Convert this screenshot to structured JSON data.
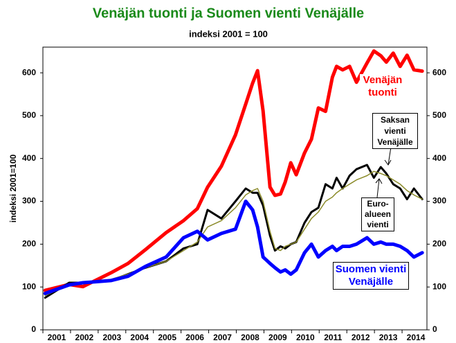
{
  "chart_data": {
    "type": "line",
    "title": "Venäjän tuonti ja Suomen vienti Venäjälle",
    "subtitle": "indeksi 2001 = 100",
    "y_label": "indeksi 2001=100",
    "x": [
      2000.58,
      2001.45,
      2001.95,
      2002.96,
      2003.58,
      2004.21,
      2004.96,
      2005.59,
      2006.09,
      2006.46,
      2006.96,
      2007.47,
      2007.84,
      2008.09,
      2008.27,
      2008.47,
      2008.72,
      2008.9,
      2009.1,
      2009.27,
      2009.47,
      2009.67,
      2009.97,
      2010.22,
      2010.47,
      2010.73,
      2010.98,
      2011.13,
      2011.35,
      2011.6,
      2011.85,
      2012.23,
      2012.48,
      2012.73,
      2012.93,
      2013.18,
      2013.43,
      2013.68,
      2013.93,
      2014.23
    ],
    "series": [
      {
        "name": "Venäjän tuonti",
        "color": "#ff0000",
        "values": [
          92,
          106,
          101,
          133,
          155,
          187,
          227,
          255,
          283,
          333,
          382,
          455,
          527,
          576,
          605,
          511,
          333,
          314,
          317,
          345,
          390,
          362,
          413,
          445,
          518,
          510,
          590,
          615,
          607,
          615,
          578,
          623,
          651,
          640,
          625,
          646,
          615,
          641,
          607,
          604
        ]
      },
      {
        "name": "Saksan vienti Venäjälle",
        "color": "#000000",
        "values": [
          75,
          110,
          110,
          115,
          130,
          145,
          160,
          190,
          200,
          280,
          260,
          300,
          330,
          320,
          320,
          290,
          220,
          185,
          195,
          190,
          200,
          205,
          250,
          275,
          285,
          340,
          330,
          355,
          330,
          360,
          375,
          385,
          355,
          380,
          365,
          340,
          330,
          305,
          330,
          305
        ]
      },
      {
        "name": "Euro-alueen vienti",
        "color": "#8b8b2a",
        "values": [
          80,
          105,
          108,
          118,
          130,
          145,
          160,
          185,
          205,
          240,
          255,
          285,
          315,
          325,
          330,
          300,
          230,
          190,
          185,
          195,
          200,
          205,
          235,
          260,
          275,
          300,
          310,
          320,
          330,
          340,
          350,
          360,
          370,
          365,
          360,
          350,
          340,
          325,
          315,
          305
        ]
      },
      {
        "name": "Suomen vienti Venäjälle",
        "color": "#0000ff",
        "values": [
          85,
          105,
          110,
          115,
          125,
          148,
          170,
          215,
          230,
          210,
          225,
          235,
          300,
          280,
          240,
          170,
          155,
          145,
          135,
          140,
          130,
          140,
          180,
          200,
          170,
          185,
          195,
          185,
          195,
          195,
          200,
          215,
          200,
          205,
          200,
          200,
          195,
          185,
          170,
          180
        ]
      }
    ],
    "xlim": [
      2000.5,
      2014.4
    ],
    "xticks": [
      2001,
      2002,
      2003,
      2004,
      2005,
      2006,
      2007,
      2008,
      2009,
      2010,
      2011,
      2012,
      2013,
      2014
    ],
    "ylim": [
      0,
      660
    ],
    "yticks": [
      0,
      100,
      200,
      300,
      400,
      500,
      600
    ]
  }
}
